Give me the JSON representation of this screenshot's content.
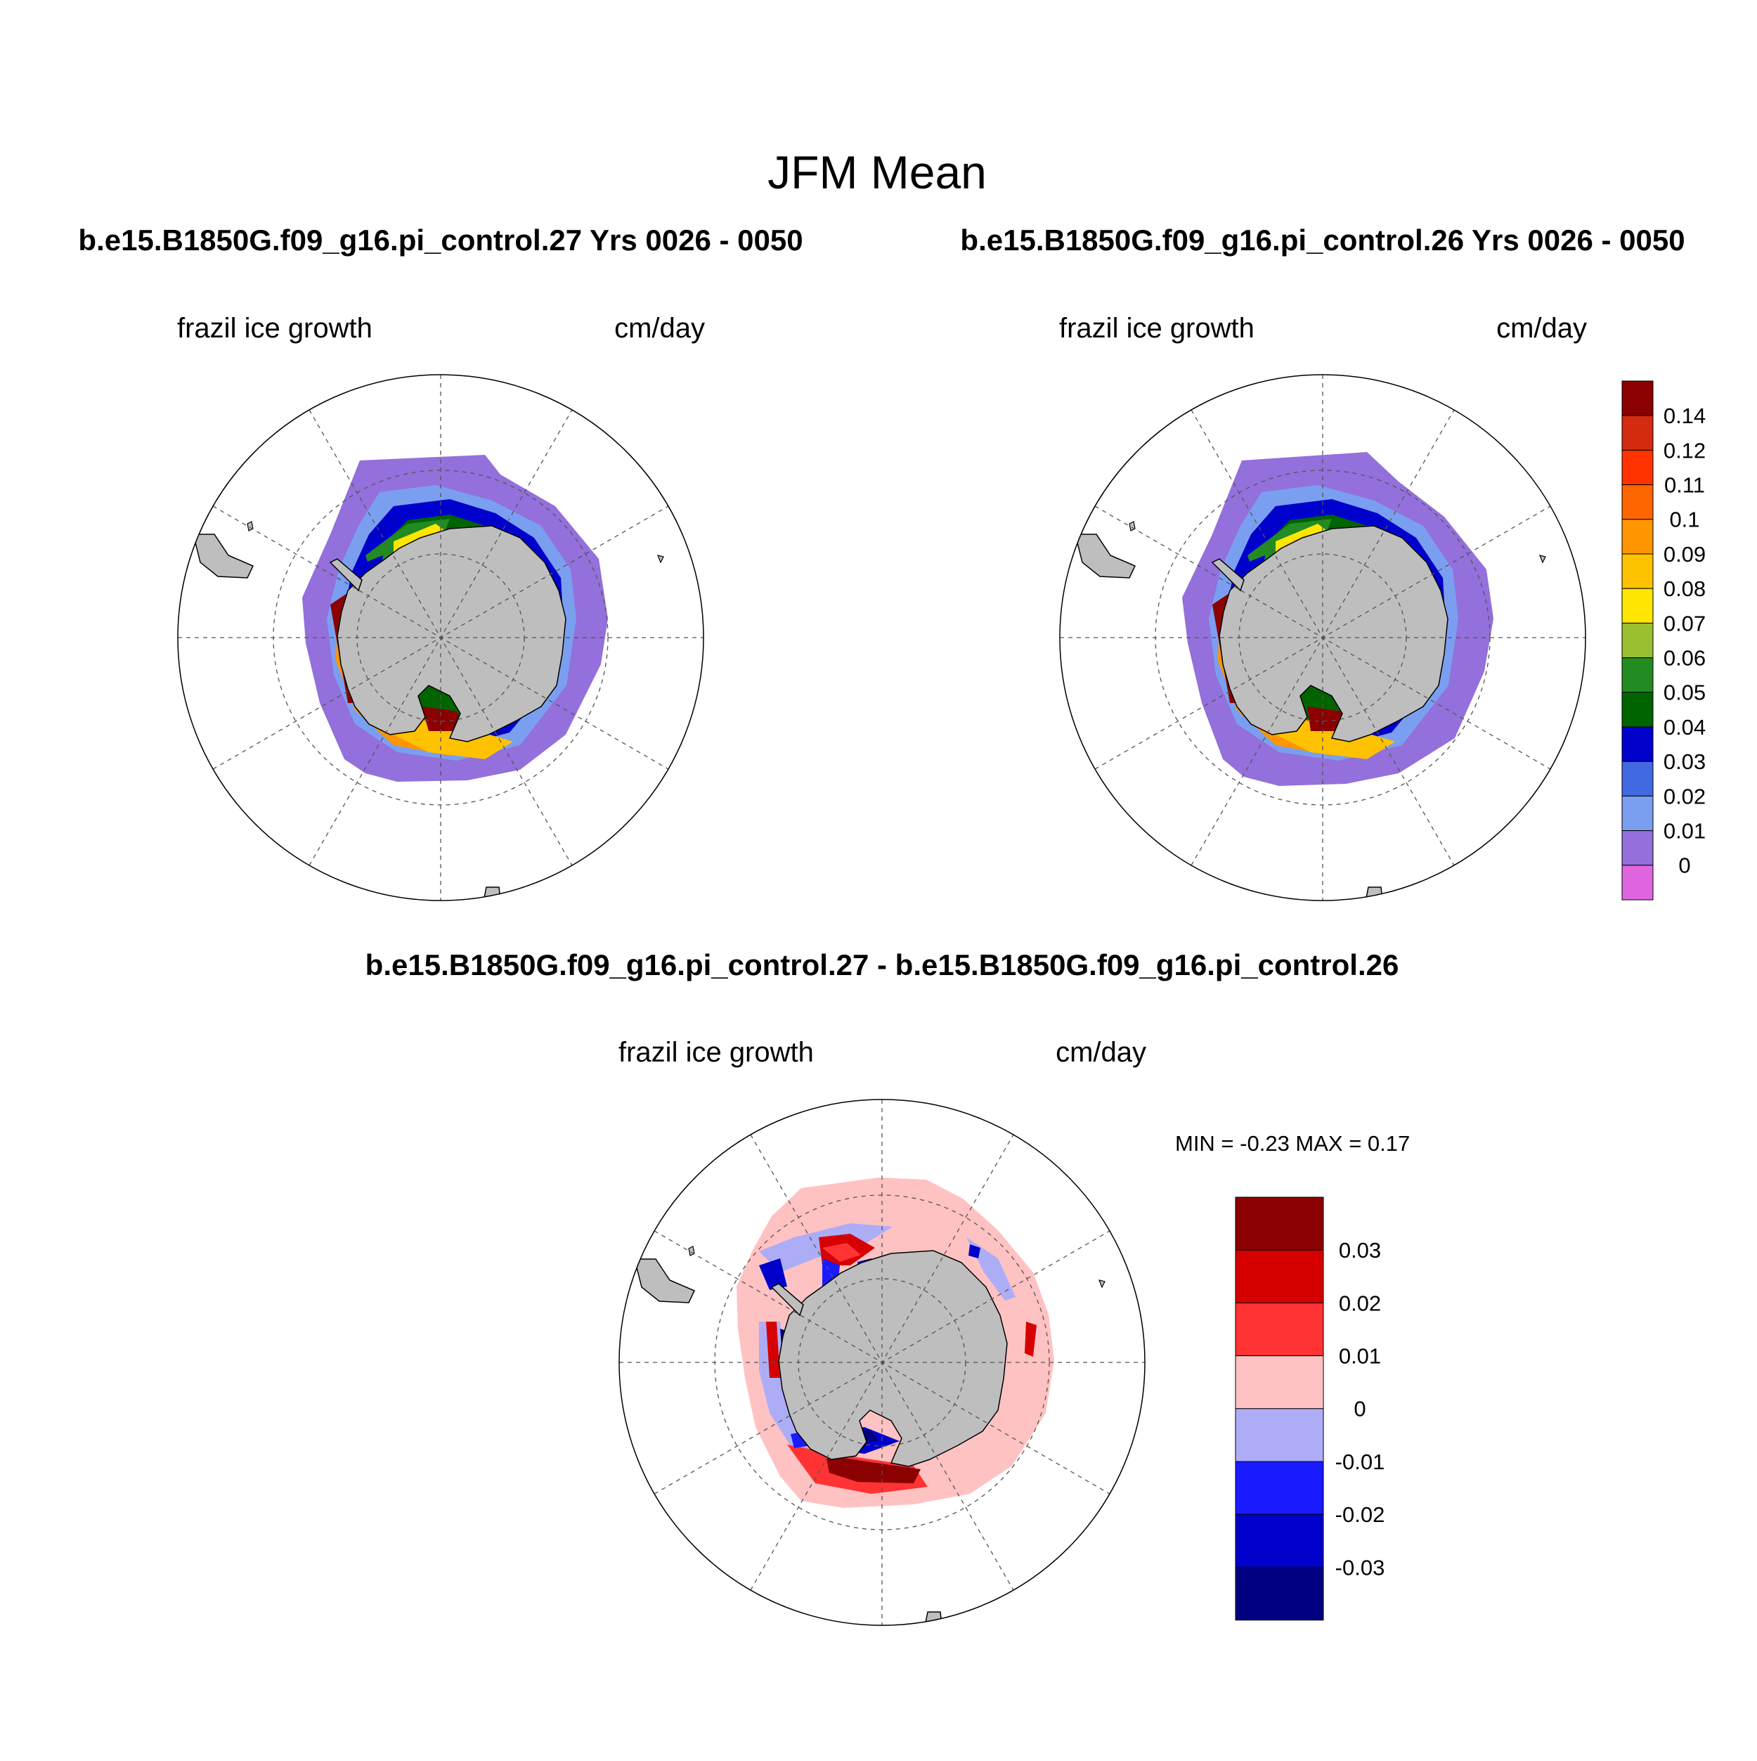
{
  "figure": {
    "title": "JFM Mean"
  },
  "panels": {
    "top_left": {
      "case_title": "b.e15.B1850G.f09_g16.pi_control.27  Yrs 0026 - 0050",
      "left_label": "frazil ice growth",
      "right_label": "cm/day"
    },
    "top_right": {
      "case_title": "b.e15.B1850G.f09_g16.pi_control.26  Yrs 0026 - 0050",
      "left_label": "frazil ice growth",
      "right_label": "cm/day"
    },
    "difference": {
      "case_title": "b.e15.B1850G.f09_g16.pi_control.27 - b.e15.B1850G.f09_g16.pi_control.26",
      "left_label": "frazil ice growth",
      "right_label": "cm/day",
      "minmax": "MIN =  -0.23 MAX =   0.17"
    }
  },
  "colorbars": {
    "main": {
      "labels": [
        "0.14",
        "0.12",
        "0.11",
        "0.1",
        "0.09",
        "0.08",
        "0.07",
        "0.06",
        "0.05",
        "0.04",
        "0.03",
        "0.02",
        "0.01",
        "0"
      ],
      "colors": [
        "#8b0000",
        "#d42a0f",
        "#ff3300",
        "#ff6600",
        "#ff9500",
        "#ffc200",
        "#ffe600",
        "#9ac032",
        "#228b22",
        "#006400",
        "#0000cd",
        "#4169e1",
        "#7b9ff0",
        "#9370db",
        "#e066e0"
      ]
    },
    "difference": {
      "labels": [
        "0.03",
        "0.02",
        "0.01",
        "0",
        "-0.01",
        "-0.02",
        "-0.03"
      ],
      "colors": [
        "#8b0000",
        "#d70000",
        "#ff3333",
        "#ffc2c2",
        "#adadf7",
        "#1a1aff",
        "#0000cc",
        "#000080"
      ]
    }
  },
  "map_colors": {
    "land": "#bebebe",
    "ocean": "#ffffff"
  }
}
